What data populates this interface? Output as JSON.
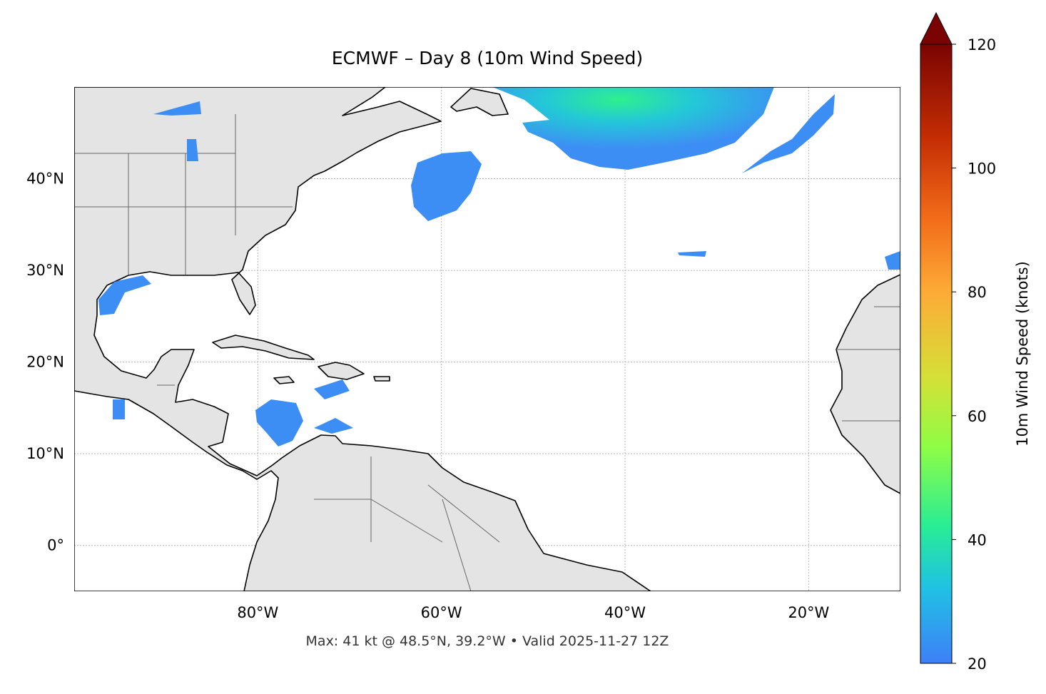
{
  "title": "ECMWF – Day 8 (10m Wind Speed)",
  "footer": "Max: 41 kt @ 48.5°N, 39.2°W • Valid 2025-11-27 12Z",
  "map": {
    "xlim": [
      -100,
      -10
    ],
    "ylim": [
      -5,
      50
    ],
    "xticks": [
      {
        "value": -80,
        "label": "80°W"
      },
      {
        "value": -60,
        "label": "60°W"
      },
      {
        "value": -40,
        "label": "40°W"
      },
      {
        "value": -20,
        "label": "20°W"
      }
    ],
    "yticks": [
      {
        "value": 0,
        "label": "0°"
      },
      {
        "value": 10,
        "label": "10°N"
      },
      {
        "value": 20,
        "label": "20°N"
      },
      {
        "value": 30,
        "label": "30°N"
      },
      {
        "value": 40,
        "label": "40°N"
      }
    ],
    "grid": true
  },
  "colorbar": {
    "label": "10m Wind Speed (knots)",
    "lim": [
      20,
      120
    ],
    "ticks": [
      20,
      40,
      60,
      80,
      100,
      120
    ],
    "extend": "max"
  }
}
